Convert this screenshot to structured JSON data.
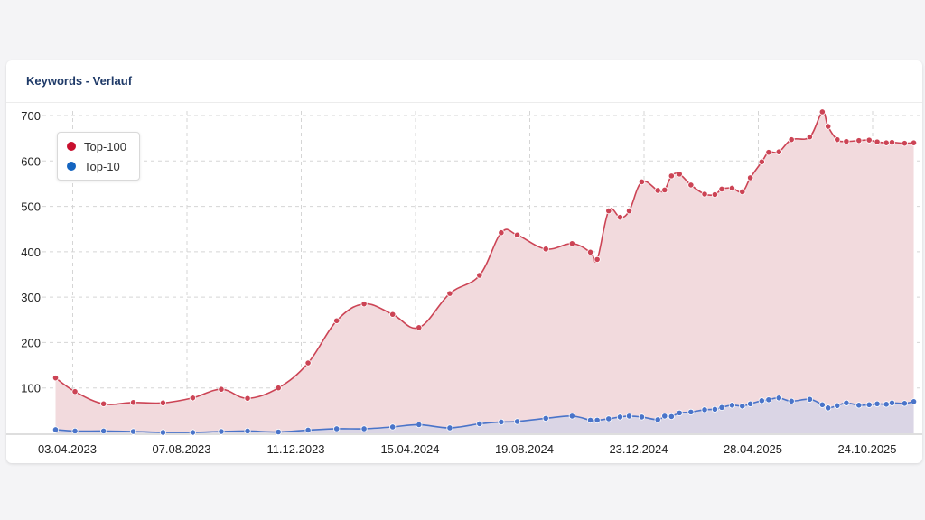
{
  "card": {
    "title": "Keywords - Verlauf"
  },
  "legend": {
    "items": [
      {
        "label": "Top-100",
        "color": "#c8102e"
      },
      {
        "label": "Top-10",
        "color": "#1565c0"
      }
    ]
  },
  "chart_data": {
    "type": "area",
    "title": "Keywords - Verlauf",
    "ylim": [
      0,
      700
    ],
    "yticks": [
      100,
      200,
      300,
      400,
      500,
      600,
      700
    ],
    "grid": true,
    "legend_position": "top-left",
    "xticks": [
      "03.04.2023",
      "07.08.2023",
      "11.12.2023",
      "15.04.2024",
      "19.08.2024",
      "23.12.2024",
      "28.04.2025",
      "24.10.2025"
    ],
    "series": [
      {
        "name": "Top-100",
        "line_color": "#cc4455",
        "fill_color": "#f2dadd",
        "x": [
          -0.15,
          0.02,
          0.27,
          0.53,
          0.79,
          1.05,
          1.3,
          1.53,
          1.8,
          2.06,
          2.31,
          2.55,
          2.8,
          3.03,
          3.3,
          3.56,
          3.75,
          3.89,
          4.14,
          4.37,
          4.53,
          4.59,
          4.69,
          4.79,
          4.87,
          4.98,
          5.12,
          5.18,
          5.24,
          5.31,
          5.41,
          5.53,
          5.62,
          5.68,
          5.77,
          5.86,
          5.93,
          6.03,
          6.09,
          6.18,
          6.29,
          6.45,
          6.56,
          6.61,
          6.69,
          6.77,
          6.88,
          6.97,
          7.04,
          7.12,
          7.17,
          7.28,
          7.36
        ],
        "values": [
          122,
          92,
          65,
          68,
          67,
          78,
          97,
          77,
          100,
          155,
          248,
          285,
          262,
          233,
          308,
          348,
          442,
          437,
          406,
          418,
          399,
          383,
          490,
          476,
          490,
          554,
          535,
          536,
          567,
          571,
          547,
          527,
          526,
          538,
          540,
          532,
          563,
          598,
          619,
          620,
          647,
          653,
          708,
          676,
          647,
          643,
          645,
          646,
          642,
          640,
          641,
          639,
          640
        ]
      },
      {
        "name": "Top-10",
        "line_color": "#4a74c9",
        "fill_color": "#d6d4e6",
        "x": [
          -0.15,
          0.02,
          0.27,
          0.53,
          0.79,
          1.05,
          1.3,
          1.53,
          1.8,
          2.06,
          2.31,
          2.55,
          2.8,
          3.03,
          3.3,
          3.56,
          3.75,
          3.89,
          4.14,
          4.37,
          4.53,
          4.59,
          4.69,
          4.79,
          4.87,
          4.98,
          5.12,
          5.18,
          5.24,
          5.31,
          5.41,
          5.53,
          5.62,
          5.68,
          5.77,
          5.86,
          5.93,
          6.03,
          6.09,
          6.18,
          6.29,
          6.45,
          6.56,
          6.61,
          6.69,
          6.77,
          6.88,
          6.97,
          7.04,
          7.12,
          7.17,
          7.28,
          7.36
        ],
        "values": [
          8,
          5,
          5,
          4,
          2,
          2,
          4,
          5,
          3,
          7,
          10,
          10,
          14,
          19,
          12,
          21,
          25,
          26,
          33,
          38,
          29,
          29,
          32,
          36,
          38,
          36,
          30,
          38,
          37,
          45,
          47,
          52,
          53,
          57,
          62,
          60,
          65,
          72,
          74,
          78,
          71,
          75,
          63,
          56,
          61,
          67,
          62,
          63,
          65,
          64,
          67,
          66,
          70
        ]
      }
    ]
  }
}
